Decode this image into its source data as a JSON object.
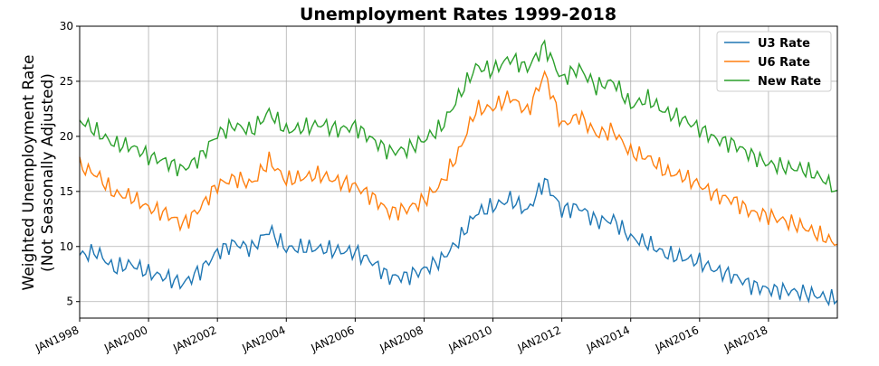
{
  "chart_data": {
    "type": "line",
    "title": "Unemployment Rates 1999-2018",
    "ylabel": "Weighted Unemployment Rate",
    "ylabel2": "(Not Seasonally Adjusted)",
    "xlabel": "",
    "xlim": [
      1998.0,
      2020.0
    ],
    "ylim": [
      3.5,
      30
    ],
    "yticks": [
      5,
      10,
      15,
      20,
      25,
      30
    ],
    "xticks": [
      {
        "x": 1998,
        "label": "JAN1998"
      },
      {
        "x": 2000,
        "label": "JAN2000"
      },
      {
        "x": 2002,
        "label": "JAN2002"
      },
      {
        "x": 2004,
        "label": "JAN2004"
      },
      {
        "x": 2006,
        "label": "JAN2006"
      },
      {
        "x": 2008,
        "label": "JAN2008"
      },
      {
        "x": 2010,
        "label": "JAN2010"
      },
      {
        "x": 2012,
        "label": "JAN2012"
      },
      {
        "x": 2014,
        "label": "JAN2014"
      },
      {
        "x": 2016,
        "label": "JAN2016"
      },
      {
        "x": 2018,
        "label": "JAN2018"
      }
    ],
    "grid": true,
    "legend": "top-right",
    "x": [
      1998.0,
      1998.5,
      1999.0,
      1999.5,
      2000.0,
      2000.5,
      2001.0,
      2001.5,
      2002.0,
      2002.5,
      2003.0,
      2003.5,
      2004.0,
      2004.5,
      2005.0,
      2005.5,
      2006.0,
      2006.5,
      2007.0,
      2007.5,
      2008.0,
      2008.5,
      2009.0,
      2009.5,
      2010.0,
      2010.5,
      2011.0,
      2011.5,
      2012.0,
      2012.5,
      2013.0,
      2013.5,
      2014.0,
      2014.5,
      2015.0,
      2015.5,
      2016.0,
      2016.5,
      2017.0,
      2017.5,
      2018.0,
      2018.5,
      2019.0,
      2019.5,
      2020.0
    ],
    "series": [
      {
        "name": "U3 Rate",
        "color": "#1f77b4",
        "values": [
          9.2,
          9.5,
          8.0,
          8.4,
          7.6,
          7.2,
          6.6,
          7.8,
          9.5,
          10.3,
          9.8,
          11.5,
          9.8,
          9.9,
          9.8,
          9.6,
          9.5,
          8.6,
          7.2,
          7.3,
          7.9,
          8.8,
          10.5,
          13.0,
          13.6,
          14.3,
          13.2,
          16.0,
          13.3,
          13.6,
          12.3,
          12.4,
          10.8,
          10.3,
          9.3,
          9.0,
          8.6,
          7.8,
          7.3,
          6.5,
          6.1,
          6.0,
          5.8,
          5.5,
          5.1
        ]
      },
      {
        "name": "U6 Rate",
        "color": "#ff7f0e",
        "values": [
          17.3,
          16.5,
          14.8,
          14.5,
          13.5,
          13.0,
          12.0,
          13.5,
          15.6,
          16.2,
          15.7,
          17.8,
          16.0,
          16.3,
          16.5,
          15.9,
          15.5,
          14.5,
          13.1,
          13.4,
          14.2,
          15.7,
          18.5,
          22.4,
          22.6,
          23.6,
          22.2,
          25.7,
          21.0,
          21.9,
          20.2,
          20.5,
          18.5,
          18.1,
          16.8,
          16.4,
          15.6,
          14.6,
          14.2,
          13.1,
          12.8,
          12.3,
          11.8,
          11.0,
          10.2
        ]
      },
      {
        "name": "New Rate",
        "color": "#2ca02c",
        "values": [
          21.5,
          20.4,
          19.3,
          19.1,
          18.2,
          17.7,
          17.0,
          18.1,
          20.2,
          21.0,
          20.5,
          22.2,
          20.5,
          20.8,
          21.1,
          20.6,
          20.9,
          19.7,
          18.6,
          18.8,
          19.7,
          20.8,
          23.6,
          26.3,
          26.0,
          27.1,
          26.2,
          28.2,
          25.2,
          26.2,
          24.5,
          25.0,
          22.8,
          23.4,
          22.2,
          21.6,
          20.7,
          19.7,
          19.3,
          18.3,
          17.5,
          17.2,
          17.0,
          16.3,
          15.1
        ]
      }
    ]
  }
}
